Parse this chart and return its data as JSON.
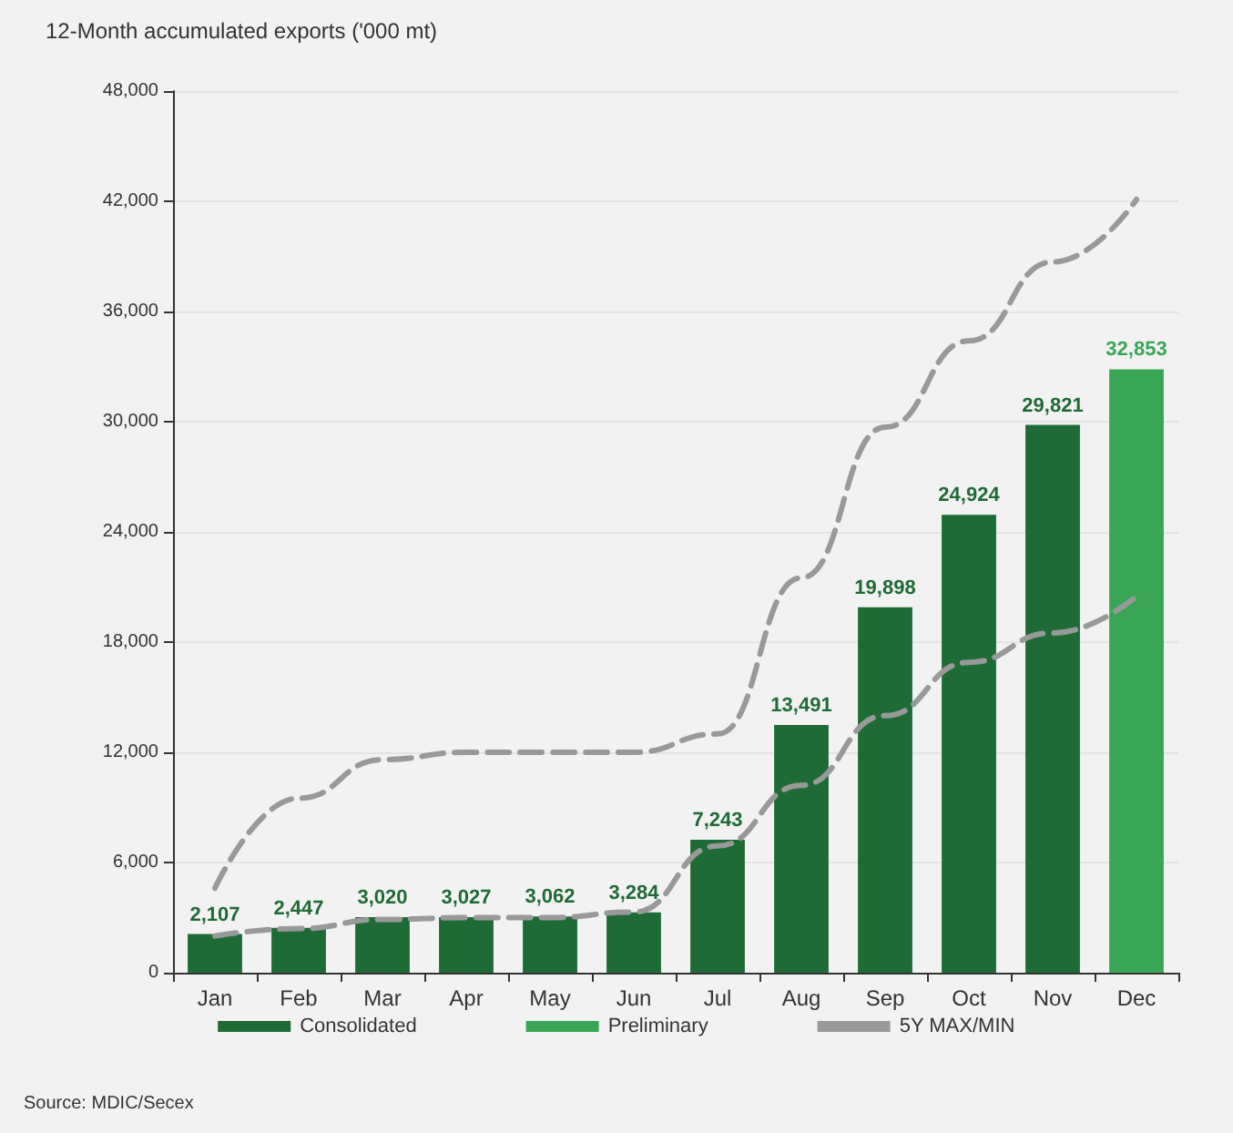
{
  "chart_data": {
    "type": "bar",
    "title": "12-Month accumulated exports ('000 mt)",
    "categories": [
      "Jan",
      "Feb",
      "Mar",
      "Apr",
      "May",
      "Jun",
      "Jul",
      "Aug",
      "Sep",
      "Oct",
      "Nov",
      "Dec"
    ],
    "series": [
      {
        "name": "Consolidated",
        "color": "#1e6b35",
        "values": [
          2107,
          2447,
          3020,
          3027,
          3062,
          3284,
          7243,
          13491,
          19898,
          24924,
          29821,
          null
        ],
        "value_labels": [
          "2,107",
          "2,447",
          "3,020",
          "3,027",
          "3,062",
          "3,284",
          "7,243",
          "13,491",
          "19,898",
          "24,924",
          "29,821",
          null
        ]
      },
      {
        "name": "Preliminary",
        "color": "#3aa655",
        "values": [
          null,
          null,
          null,
          null,
          null,
          null,
          null,
          null,
          null,
          null,
          null,
          32853
        ],
        "value_labels": [
          null,
          null,
          null,
          null,
          null,
          null,
          null,
          null,
          null,
          null,
          null,
          "32,853"
        ]
      },
      {
        "name": "5Y MAX/MIN",
        "type": "line",
        "color": "#999999",
        "line_style": "dashed",
        "marker": "none",
        "values": [
          4600,
          9500,
          11600,
          12000,
          12000,
          12000,
          13000,
          21500,
          29700,
          34400,
          38700,
          42100
        ]
      },
      {
        "type": "line",
        "color": "#999999",
        "line_style": "dashed",
        "marker": "none",
        "values": [
          2000,
          2400,
          2900,
          3000,
          3000,
          3300,
          6900,
          10200,
          14000,
          16900,
          18500,
          20500
        ]
      }
    ],
    "ylim": [
      0,
      48000
    ],
    "yticks": [
      0,
      {
        "value": 6000,
        "label": "6,000"
      },
      {
        "value": 12000,
        "label": "12,000"
      },
      {
        "value": 18000,
        "label": "18,000"
      },
      {
        "value": 24000,
        "label": "24,000"
      },
      {
        "value": 30000,
        "label": "30,000"
      },
      {
        "value": 36000,
        "label": "36,000"
      },
      {
        "value": 42000,
        "label": "42,000"
      },
      {
        "value": 48000,
        "label": "48,000"
      }
    ],
    "grid": "y",
    "legend": "bottom",
    "annotations": [
      "Source: MDIC/Secex"
    ]
  }
}
